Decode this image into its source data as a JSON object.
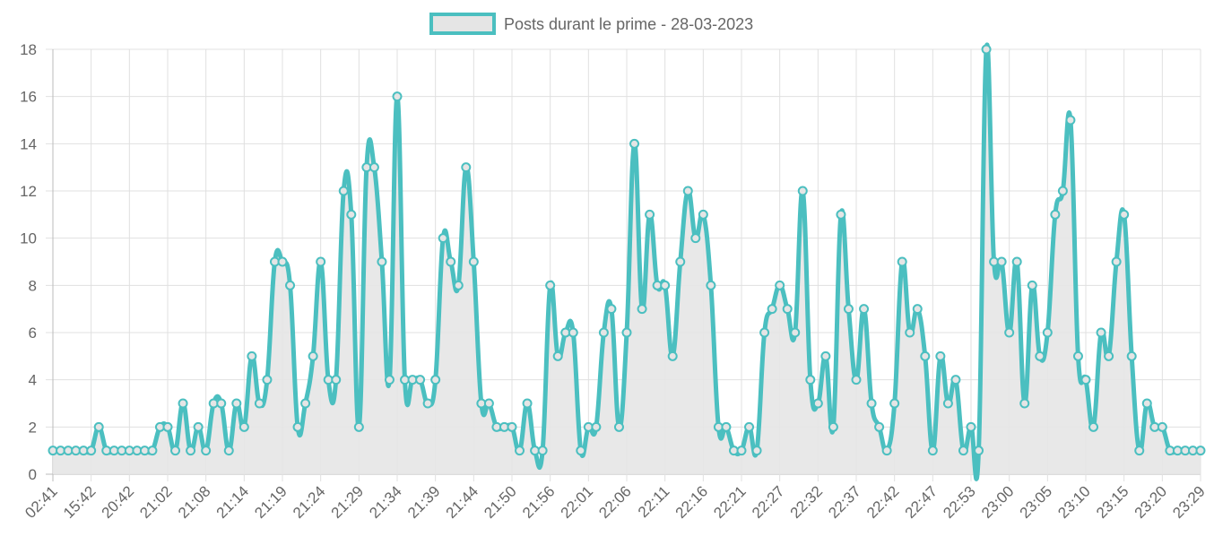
{
  "chart_data": {
    "type": "line",
    "title": "",
    "legend": {
      "label": "Posts durant le prime - 28-03-2023",
      "position": "top"
    },
    "xlabel": "",
    "ylabel": "",
    "ylim": [
      0,
      18
    ],
    "y_ticks": [
      0,
      2,
      4,
      6,
      8,
      10,
      12,
      14,
      16,
      18
    ],
    "grid": true,
    "fill": true,
    "x_tick_labels": [
      "02:41",
      "15:42",
      "20:42",
      "21:02",
      "21:08",
      "21:14",
      "21:19",
      "21:24",
      "21:29",
      "21:34",
      "21:39",
      "21:44",
      "21:50",
      "21:56",
      "22:01",
      "22:06",
      "22:11",
      "22:16",
      "22:21",
      "22:27",
      "22:32",
      "22:37",
      "22:42",
      "22:47",
      "22:53",
      "23:00",
      "23:05",
      "23:10",
      "23:15",
      "23:20",
      "23:29"
    ],
    "x_tick_every": 5,
    "series": [
      {
        "name": "Posts durant le prime - 28-03-2023",
        "color": "#4bbfc0",
        "fill_color": "#e5e5e5",
        "values": [
          1,
          1,
          1,
          1,
          1,
          1,
          2,
          1,
          1,
          1,
          1,
          1,
          1,
          1,
          2,
          2,
          1,
          3,
          1,
          2,
          1,
          3,
          3,
          1,
          3,
          2,
          5,
          3,
          4,
          9,
          9,
          8,
          2,
          3,
          5,
          9,
          4,
          4,
          12,
          11,
          2,
          13,
          13,
          9,
          4,
          16,
          4,
          4,
          4,
          3,
          4,
          10,
          9,
          8,
          13,
          9,
          3,
          3,
          2,
          2,
          2,
          1,
          3,
          1,
          1,
          8,
          5,
          6,
          6,
          1,
          2,
          2,
          6,
          7,
          2,
          6,
          14,
          7,
          11,
          8,
          8,
          5,
          9,
          12,
          10,
          11,
          8,
          2,
          2,
          1,
          1,
          2,
          1,
          6,
          7,
          8,
          7,
          6,
          12,
          4,
          3,
          5,
          2,
          11,
          7,
          4,
          7,
          3,
          2,
          1,
          3,
          9,
          6,
          7,
          5,
          1,
          5,
          3,
          4,
          1,
          2,
          1,
          18,
          9,
          9,
          6,
          9,
          3,
          8,
          5,
          6,
          11,
          12,
          15,
          5,
          4,
          2,
          6,
          5,
          9,
          11,
          5,
          1,
          3,
          2,
          2,
          1,
          1,
          1,
          1,
          1
        ]
      }
    ]
  }
}
